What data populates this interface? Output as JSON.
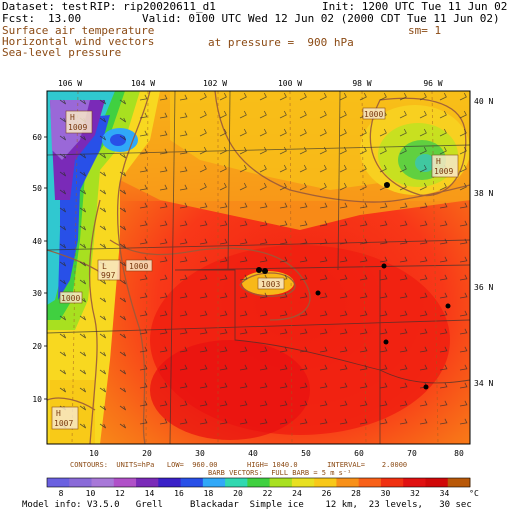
{
  "header": {
    "dataset_label": "Dataset: test",
    "rip_label": "RIP: rip20020611_d1",
    "init_label": "Init: 1200 UTC Tue 11 Jun 02",
    "fcst_label": "Fcst:",
    "fcst_value": "13.00",
    "valid_label": "Valid: 0100 UTC Wed 12 Jun 02 (2000 CDT Tue 11 Jun 02)",
    "field_1": "Surface air temperature",
    "field_2": "Horizontal wind vectors",
    "field_3": "Sea-level pressure",
    "pressure_text": "at pressure =  900 hPa",
    "smoothing": "sm= 1"
  },
  "map": {
    "lon_labels": [
      "106 W",
      "104 W",
      "102 W",
      "100 W",
      "98 W",
      "96 W"
    ],
    "lat_labels": [
      "40 N",
      "38 N",
      "36 N",
      "34 N"
    ],
    "left_ticks": [
      "60",
      "50",
      "40",
      "30",
      "20",
      "10"
    ],
    "bottom_ticks": [
      "10",
      "20",
      "30",
      "40",
      "50",
      "60",
      "70",
      "80"
    ],
    "pressure_labels": [
      {
        "letter": "H",
        "value": "1009"
      },
      {
        "letter": "H",
        "value": "1009"
      },
      {
        "letter": "L",
        "value": "997"
      },
      {
        "letter": "",
        "value": "1000"
      },
      {
        "letter": "",
        "value": "1000"
      },
      {
        "letter": "H",
        "value": "1007"
      },
      {
        "letter": "",
        "value": "1003"
      },
      {
        "letter": "",
        "value": "1000"
      }
    ]
  },
  "footer": {
    "contours": "CONTOURS:  UNITS=hPa   LOW=  960.00       HIGH= 1040.0       INTERVAL=    2.0000",
    "barbs": "BARB VECTORS:  FULL BARB = 5 m s⁻¹",
    "colorbar_ticks": [
      "8",
      "10",
      "12",
      "14",
      "16",
      "18",
      "20",
      "22",
      "24",
      "26",
      "28",
      "30",
      "32",
      "34",
      "°C"
    ],
    "colorbar_colors": [
      "#6a60e0",
      "#8a6ad8",
      "#a878d8",
      "#b050c8",
      "#7a2ab8",
      "#3a20c8",
      "#2850e8",
      "#30a8f8",
      "#30d8b0",
      "#40d040",
      "#a8e020",
      "#e8e020",
      "#f8c818",
      "#f89018",
      "#f86018",
      "#f03010",
      "#e01010",
      "#d00808",
      "#b85808"
    ],
    "model_info": "Model info: V3.5.0   Grell     Blackadar  Simple ice    12 km,  23 levels,   30 sec"
  }
}
